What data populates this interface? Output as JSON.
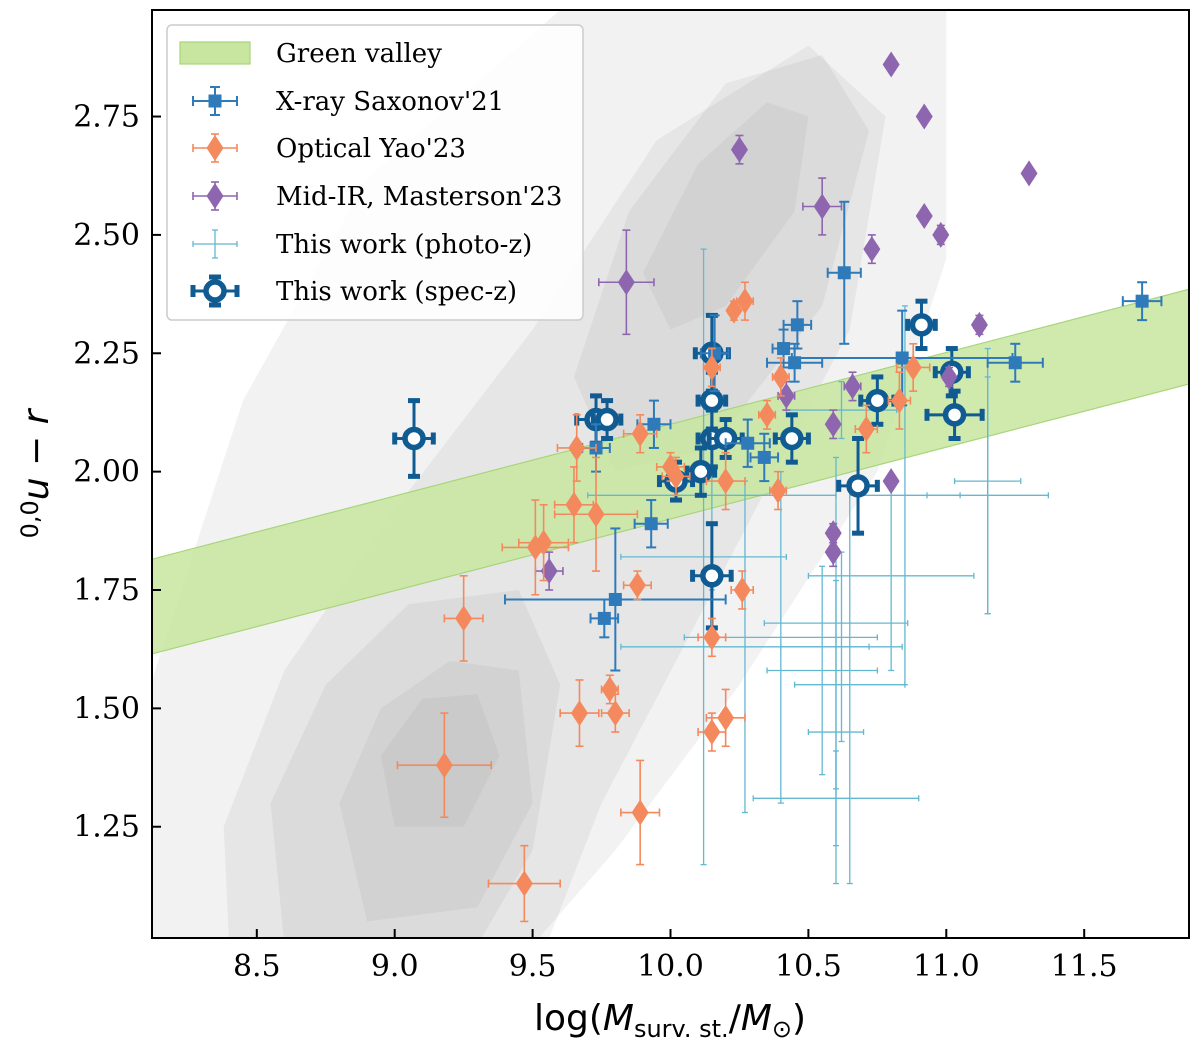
{
  "chart_data": {
    "type": "scatter",
    "title": "",
    "xlabel": "log(M_surv. st./M_⊙)",
    "xlabel_parts": {
      "pre": "log(",
      "M": "M",
      "sub1": "surv. st.",
      "slash": "/",
      "M2": "M",
      "sub2": "⊙",
      "post": ")"
    },
    "ylabel": "0,0u − r",
    "ylabel_parts": {
      "sup": "0,0",
      "main": "u − r"
    },
    "xlim": [
      8.12,
      11.88
    ],
    "ylim": [
      1.015,
      2.975
    ],
    "xticks": [
      8.5,
      9.0,
      9.5,
      10.0,
      10.5,
      11.0,
      11.5
    ],
    "xtick_labels": [
      "8.5",
      "9.0",
      "9.5",
      "10.0",
      "10.5",
      "11.0",
      "11.5"
    ],
    "yticks": [
      1.25,
      1.5,
      1.75,
      2.0,
      2.25,
      2.5,
      2.75
    ],
    "ytick_labels": [
      "1.25",
      "1.50",
      "1.75",
      "2.00",
      "2.25",
      "2.50",
      "2.75"
    ],
    "green_valley": {
      "label": "Green valley",
      "lower": [
        [
          8.12,
          1.615
        ],
        [
          11.88,
          2.185
        ]
      ],
      "upper": [
        [
          8.12,
          1.815
        ],
        [
          11.88,
          2.385
        ]
      ],
      "color": "#c8e6a0"
    },
    "background_contours": {
      "color": "#888888",
      "levels": [
        {
          "opacity": 0.11,
          "points": [
            [
              8.12,
              1.0
            ],
            [
              8.12,
              1.56
            ],
            [
              8.45,
              2.15
            ],
            [
              8.9,
              2.62
            ],
            [
              9.6,
              2.975
            ],
            [
              11.0,
              2.975
            ],
            [
              11.0,
              2.45
            ],
            [
              10.75,
              2.0
            ],
            [
              10.25,
              1.55
            ],
            [
              9.8,
              1.2
            ],
            [
              9.5,
              1.0
            ]
          ]
        },
        {
          "opacity": 0.11,
          "points": [
            [
              8.4,
              1.0
            ],
            [
              8.38,
              1.25
            ],
            [
              8.6,
              1.58
            ],
            [
              9.0,
              1.92
            ],
            [
              9.5,
              2.3
            ],
            [
              9.95,
              2.7
            ],
            [
              10.5,
              2.9
            ],
            [
              10.78,
              2.75
            ],
            [
              10.65,
              2.3
            ],
            [
              10.2,
              1.8
            ],
            [
              9.75,
              1.3
            ],
            [
              9.55,
              1.0
            ]
          ]
        },
        {
          "opacity": 0.11,
          "points": [
            [
              8.6,
              1.0
            ],
            [
              8.55,
              1.3
            ],
            [
              8.75,
              1.55
            ],
            [
              9.05,
              1.72
            ],
            [
              9.45,
              1.75
            ],
            [
              9.6,
              1.55
            ],
            [
              9.5,
              1.2
            ],
            [
              9.3,
              1.0
            ]
          ]
        },
        {
          "opacity": 0.11,
          "points": [
            [
              9.65,
              2.2
            ],
            [
              9.85,
              2.55
            ],
            [
              10.2,
              2.82
            ],
            [
              10.55,
              2.88
            ],
            [
              10.72,
              2.72
            ],
            [
              10.55,
              2.35
            ],
            [
              10.15,
              2.05
            ],
            [
              9.8,
              2.0
            ]
          ]
        },
        {
          "opacity": 0.11,
          "points": [
            [
              8.9,
              1.05
            ],
            [
              8.8,
              1.3
            ],
            [
              8.95,
              1.5
            ],
            [
              9.2,
              1.6
            ],
            [
              9.45,
              1.58
            ],
            [
              9.5,
              1.3
            ],
            [
              9.3,
              1.08
            ]
          ]
        },
        {
          "opacity": 0.11,
          "points": [
            [
              9.9,
              2.42
            ],
            [
              10.1,
              2.65
            ],
            [
              10.35,
              2.78
            ],
            [
              10.5,
              2.75
            ],
            [
              10.45,
              2.55
            ],
            [
              10.2,
              2.35
            ],
            [
              10.0,
              2.3
            ]
          ]
        },
        {
          "opacity": 0.11,
          "points": [
            [
              9.0,
              1.25
            ],
            [
              8.95,
              1.4
            ],
            [
              9.1,
              1.52
            ],
            [
              9.3,
              1.53
            ],
            [
              9.38,
              1.4
            ],
            [
              9.25,
              1.25
            ]
          ]
        }
      ]
    },
    "series": [
      {
        "name": "X-ray Saxonov'21",
        "marker": "square",
        "color": "#2f7ab9",
        "points": [
          {
            "x": 9.73,
            "y": 2.05,
            "xerr": 0.05,
            "yerr": 0.05
          },
          {
            "x": 9.94,
            "y": 2.1,
            "xerr": 0.06,
            "yerr": 0.05
          },
          {
            "x": 9.93,
            "y": 1.89,
            "xerr": 0.06,
            "yerr": 0.05
          },
          {
            "x": 9.8,
            "y": 1.73,
            "xerr": 0.4,
            "yerr": 0.15
          },
          {
            "x": 9.76,
            "y": 1.69,
            "xerr": 0.05,
            "yerr": 0.04
          },
          {
            "x": 10.16,
            "y": 2.25,
            "xerr": 0.05,
            "yerr": 0.08
          },
          {
            "x": 10.34,
            "y": 2.03,
            "xerr": 0.05,
            "yerr": 0.05
          },
          {
            "x": 10.41,
            "y": 2.26,
            "xerr": 0.04,
            "yerr": 0.04
          },
          {
            "x": 10.46,
            "y": 2.31,
            "xerr": 0.05,
            "yerr": 0.05
          },
          {
            "x": 10.63,
            "y": 2.42,
            "xerr": 0.06,
            "yerr": 0.15
          },
          {
            "x": 10.84,
            "y": 2.24,
            "xerr": 0.4,
            "yerr": 0.1
          },
          {
            "x": 11.25,
            "y": 2.23,
            "xerr": 0.1,
            "yerr": 0.04
          },
          {
            "x": 11.71,
            "y": 2.36,
            "xerr": 0.07,
            "yerr": 0.04
          },
          {
            "x": 10.45,
            "y": 2.23,
            "xerr": 0.1,
            "yerr": 0.04
          },
          {
            "x": 10.28,
            "y": 2.06,
            "xerr": 0.08,
            "yerr": 0.05
          }
        ]
      },
      {
        "name": "Optical Yao'23",
        "marker": "diamond",
        "color": "#f4895d",
        "points": [
          {
            "x": 9.47,
            "y": 1.13,
            "xerr": 0.13,
            "yerr": 0.08
          },
          {
            "x": 9.18,
            "y": 1.38,
            "xerr": 0.17,
            "yerr": 0.11
          },
          {
            "x": 9.25,
            "y": 1.69,
            "xerr": 0.07,
            "yerr": 0.09
          },
          {
            "x": 9.51,
            "y": 1.84,
            "xerr": 0.12,
            "yerr": 0.1
          },
          {
            "x": 9.54,
            "y": 1.85,
            "xerr": 0.09,
            "yerr": 0.08
          },
          {
            "x": 9.65,
            "y": 1.93,
            "xerr": 0.07,
            "yerr": 0.08
          },
          {
            "x": 9.66,
            "y": 2.05,
            "xerr": 0.07,
            "yerr": 0.07
          },
          {
            "x": 9.67,
            "y": 1.49,
            "xerr": 0.07,
            "yerr": 0.07
          },
          {
            "x": 9.73,
            "y": 1.91,
            "xerr": 0.15,
            "yerr": 0.12
          },
          {
            "x": 9.78,
            "y": 1.54,
            "xerr": 0.03,
            "yerr": 0.03
          },
          {
            "x": 9.8,
            "y": 1.49,
            "xerr": 0.05,
            "yerr": 0.04
          },
          {
            "x": 9.88,
            "y": 1.76,
            "xerr": 0.05,
            "yerr": 0.03
          },
          {
            "x": 9.89,
            "y": 2.08,
            "xerr": 0.06,
            "yerr": 0.04
          },
          {
            "x": 9.89,
            "y": 1.28,
            "xerr": 0.07,
            "yerr": 0.11
          },
          {
            "x": 10.0,
            "y": 2.01,
            "xerr": 0.05,
            "yerr": 0.03
          },
          {
            "x": 10.15,
            "y": 1.65,
            "xerr": 0.05,
            "yerr": 0.04
          },
          {
            "x": 10.15,
            "y": 1.45,
            "xerr": 0.05,
            "yerr": 0.04
          },
          {
            "x": 10.2,
            "y": 1.48,
            "xerr": 0.07,
            "yerr": 0.06
          },
          {
            "x": 10.2,
            "y": 1.98,
            "xerr": 0.07,
            "yerr": 0.06
          },
          {
            "x": 10.23,
            "y": 2.34,
            "xerr": 0.02,
            "yerr": 0.02
          },
          {
            "x": 10.27,
            "y": 2.36,
            "xerr": 0.03,
            "yerr": 0.04
          },
          {
            "x": 10.26,
            "y": 1.75,
            "xerr": 0.04,
            "yerr": 0.04
          },
          {
            "x": 10.35,
            "y": 2.12,
            "xerr": 0.03,
            "yerr": 0.03
          },
          {
            "x": 10.39,
            "y": 1.96,
            "xerr": 0.03,
            "yerr": 0.04
          },
          {
            "x": 10.4,
            "y": 2.2,
            "xerr": 0.03,
            "yerr": 0.04
          },
          {
            "x": 10.71,
            "y": 2.09,
            "xerr": 0.04,
            "yerr": 0.05
          },
          {
            "x": 10.83,
            "y": 2.15,
            "xerr": 0.04,
            "yerr": 0.06
          },
          {
            "x": 10.88,
            "y": 2.22,
            "xerr": 0.06,
            "yerr": 0.05
          },
          {
            "x": 10.15,
            "y": 2.22,
            "xerr": 0.03,
            "yerr": 0.04
          },
          {
            "x": 10.02,
            "y": 1.99,
            "xerr": 0.05,
            "yerr": 0.04
          }
        ]
      },
      {
        "name": "Mid-IR, Masterson'23",
        "marker": "diamond",
        "color": "#8e66b0",
        "points": [
          {
            "x": 9.56,
            "y": 1.79,
            "xerr": 0.05,
            "yerr": 0.04
          },
          {
            "x": 9.84,
            "y": 2.4,
            "xerr": 0.1,
            "yerr": 0.11
          },
          {
            "x": 10.25,
            "y": 2.68,
            "xerr": 0.02,
            "yerr": 0.03
          },
          {
            "x": 10.42,
            "y": 2.16,
            "xerr": 0.03,
            "yerr": 0.03
          },
          {
            "x": 10.55,
            "y": 2.56,
            "xerr": 0.07,
            "yerr": 0.06
          },
          {
            "x": 10.59,
            "y": 2.1,
            "xerr": 0.02,
            "yerr": 0.03
          },
          {
            "x": 10.59,
            "y": 1.87,
            "xerr": 0.02,
            "yerr": 0.02
          },
          {
            "x": 10.59,
            "y": 1.83,
            "xerr": 0.02,
            "yerr": 0.03
          },
          {
            "x": 10.66,
            "y": 2.18,
            "xerr": 0.03,
            "yerr": 0.03
          },
          {
            "x": 10.73,
            "y": 2.47,
            "xerr": 0.02,
            "yerr": 0.03
          },
          {
            "x": 10.8,
            "y": 2.86,
            "xerr": 0,
            "yerr": 0
          },
          {
            "x": 10.8,
            "y": 1.98,
            "xerr": 0,
            "yerr": 0
          },
          {
            "x": 10.92,
            "y": 2.75,
            "xerr": 0,
            "yerr": 0
          },
          {
            "x": 10.92,
            "y": 2.54,
            "xerr": 0,
            "yerr": 0
          },
          {
            "x": 10.98,
            "y": 2.5,
            "xerr": 0.02,
            "yerr": 0.02
          },
          {
            "x": 11.01,
            "y": 2.2,
            "xerr": 0.02,
            "yerr": 0.02
          },
          {
            "x": 11.12,
            "y": 2.31,
            "xerr": 0.02,
            "yerr": 0.02
          },
          {
            "x": 11.3,
            "y": 2.63,
            "xerr": 0,
            "yerr": 0
          }
        ]
      },
      {
        "name": "This work (photo-z)",
        "marker": "none",
        "color": "#64b8d0",
        "points": [
          {
            "x": 10.12,
            "y": 1.82,
            "xerr": 0.3,
            "yerr": 0.65
          },
          {
            "x": 10.15,
            "y": 1.95,
            "xerr": 0.45,
            "yerr": 0.2
          },
          {
            "x": 10.27,
            "y": 1.63,
            "xerr": 0.45,
            "yerr": 0.35
          },
          {
            "x": 10.4,
            "y": 1.65,
            "xerr": 0.35,
            "yerr": 0.35
          },
          {
            "x": 10.55,
            "y": 1.58,
            "xerr": 0.2,
            "yerr": 0.22
          },
          {
            "x": 10.62,
            "y": 1.63,
            "xerr": 0.22,
            "yerr": 0.2
          },
          {
            "x": 10.6,
            "y": 1.45,
            "xerr": 0.1,
            "yerr": 0.32
          },
          {
            "x": 10.6,
            "y": 1.31,
            "xerr": 0.3,
            "yerr": 0.1
          },
          {
            "x": 10.65,
            "y": 1.55,
            "xerr": 0.2,
            "yerr": 0.42
          },
          {
            "x": 10.8,
            "y": 1.78,
            "xerr": 0.3,
            "yerr": 0.2
          },
          {
            "x": 11.15,
            "y": 1.95,
            "xerr": 0.22,
            "yerr": 0.25
          },
          {
            "x": 10.85,
            "y": 1.95,
            "xerr": 0.2,
            "yerr": 0.4
          },
          {
            "x": 10.6,
            "y": 1.68,
            "xerr": 0.26,
            "yerr": 0.35
          },
          {
            "x": 11.15,
            "y": 1.98,
            "xerr": 0.12,
            "yerr": 0.28
          },
          {
            "x": 10.62,
            "y": 2.13,
            "xerr": 0.2,
            "yerr": 0.06
          }
        ]
      },
      {
        "name": "This work (spec-z)",
        "marker": "circle",
        "color": "#0f5b92",
        "points": [
          {
            "x": 9.07,
            "y": 2.07,
            "xerr": 0.07,
            "yerr": 0.08
          },
          {
            "x": 9.73,
            "y": 2.11,
            "xerr": 0.07,
            "yerr": 0.05
          },
          {
            "x": 9.77,
            "y": 2.11,
            "xerr": 0.05,
            "yerr": 0.04
          },
          {
            "x": 10.02,
            "y": 1.98,
            "xerr": 0.06,
            "yerr": 0.04
          },
          {
            "x": 10.11,
            "y": 2.0,
            "xerr": 0.05,
            "yerr": 0.05
          },
          {
            "x": 10.15,
            "y": 2.25,
            "xerr": 0.06,
            "yerr": 0.08
          },
          {
            "x": 10.15,
            "y": 2.15,
            "xerr": 0.05,
            "yerr": 0.06
          },
          {
            "x": 10.15,
            "y": 2.07,
            "xerr": 0.05,
            "yerr": 0.06
          },
          {
            "x": 10.2,
            "y": 2.07,
            "xerr": 0.06,
            "yerr": 0.04
          },
          {
            "x": 10.15,
            "y": 1.78,
            "xerr": 0.07,
            "yerr": 0.11
          },
          {
            "x": 10.44,
            "y": 2.07,
            "xerr": 0.06,
            "yerr": 0.05
          },
          {
            "x": 10.68,
            "y": 1.97,
            "xerr": 0.07,
            "yerr": 0.1
          },
          {
            "x": 10.75,
            "y": 2.15,
            "xerr": 0.06,
            "yerr": 0.05
          },
          {
            "x": 10.91,
            "y": 2.31,
            "xerr": 0.05,
            "yerr": 0.05
          },
          {
            "x": 11.02,
            "y": 2.21,
            "xerr": 0.06,
            "yerr": 0.05
          },
          {
            "x": 11.03,
            "y": 2.12,
            "xerr": 0.1,
            "yerr": 0.05
          }
        ]
      }
    ],
    "legend": {
      "placement": "top-left",
      "entries": [
        "Green valley",
        "X-ray Saxonov'21",
        "Optical Yao'23",
        "Mid-IR, Masterson'23",
        "This work (photo-z)",
        "This work (spec-z)"
      ]
    }
  }
}
